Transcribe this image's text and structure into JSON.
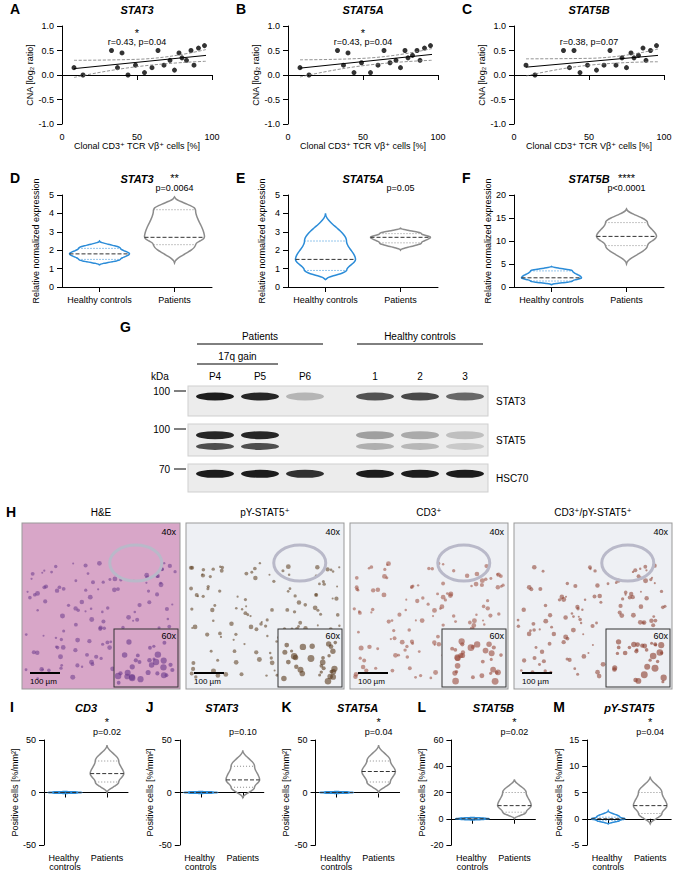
{
  "chart_data": [
    {
      "panel": "A",
      "type": "scatter",
      "title": "STAT3",
      "x_label": "Clonal CD3⁺ TCR Vβ⁺ cells [%]",
      "y_label": "CNA [log₂ ratio]",
      "significance": "*",
      "annotation": "r=0.43, p=0.04",
      "color": "#000000",
      "xlim": [
        0,
        100
      ],
      "xticks": [
        0,
        50,
        100
      ],
      "ylim": [
        -1,
        1
      ],
      "yticks": [
        {
          "value": -1,
          "label": "-1.0"
        },
        {
          "value": -0.5,
          "label": "-0.5"
        },
        {
          "value": 0,
          "label": "0.0"
        },
        {
          "value": 0.5,
          "label": "0.5"
        },
        {
          "value": 1,
          "label": "1.0"
        }
      ],
      "x": [
        8,
        14,
        33,
        37,
        40,
        44,
        49,
        55,
        60,
        64,
        68,
        72,
        75,
        78,
        80,
        83,
        86,
        88,
        91,
        95
      ],
      "values": [
        0.15,
        0.0,
        0.5,
        0.15,
        0.45,
        0.0,
        0.2,
        0.05,
        0.15,
        0.5,
        0.2,
        0.3,
        0.1,
        0.45,
        0.35,
        0.3,
        0.5,
        0.2,
        0.55,
        0.6
      ],
      "fit_line": {
        "x": [
          8,
          96
        ],
        "values": [
          0.13,
          0.4
        ]
      },
      "ci_upper": {
        "x": [
          8,
          50,
          96
        ],
        "values": [
          0.3,
          0.32,
          0.52
        ]
      },
      "ci_lower": {
        "x": [
          8,
          50,
          96
        ],
        "values": [
          -0.05,
          0.17,
          0.28
        ]
      }
    },
    {
      "panel": "B",
      "type": "scatter",
      "title": "STAT5A",
      "x_label": "Clonal CD3⁺ TCR Vβ⁺ cells [%]",
      "y_label": "CNA [log₂ ratio]",
      "significance": "*",
      "annotation": "r=0.43, p=0.04",
      "color": "#000000",
      "xlim": [
        0,
        100
      ],
      "xticks": [
        0,
        50,
        100
      ],
      "ylim": [
        -1,
        1
      ],
      "yticks": [
        {
          "value": -1,
          "label": "-1.0"
        },
        {
          "value": -0.5,
          "label": "-0.5"
        },
        {
          "value": 0,
          "label": "0.0"
        },
        {
          "value": 0.5,
          "label": "0.5"
        },
        {
          "value": 1,
          "label": "1.0"
        }
      ],
      "x": [
        8,
        14,
        33,
        37,
        40,
        44,
        49,
        55,
        60,
        64,
        68,
        72,
        75,
        78,
        80,
        83,
        86,
        88,
        91,
        95
      ],
      "values": [
        0.15,
        0.0,
        0.5,
        0.2,
        0.45,
        0.05,
        0.25,
        0.05,
        0.2,
        0.5,
        0.25,
        0.3,
        0.15,
        0.5,
        0.35,
        0.4,
        0.5,
        0.3,
        0.55,
        0.6
      ],
      "fit_line": {
        "x": [
          8,
          96
        ],
        "values": [
          0.14,
          0.42
        ]
      },
      "ci_upper": {
        "x": [
          8,
          50,
          96
        ],
        "values": [
          0.31,
          0.34,
          0.54
        ]
      },
      "ci_lower": {
        "x": [
          8,
          50,
          96
        ],
        "values": [
          -0.04,
          0.19,
          0.3
        ]
      }
    },
    {
      "panel": "C",
      "type": "scatter",
      "title": "STAT5B",
      "x_label": "Clonal CD3⁺ TCR Vβ⁺ cells [%]",
      "y_label": "CNA [log₂ ratio]",
      "annotation": "r=0.38, p=0.07",
      "color": "#000000",
      "xlim": [
        0,
        100
      ],
      "xticks": [
        0,
        50,
        100
      ],
      "ylim": [
        -1,
        1
      ],
      "yticks": [
        {
          "value": -1,
          "label": "-1.0"
        },
        {
          "value": -0.5,
          "label": "-0.5"
        },
        {
          "value": 0,
          "label": "0.0"
        },
        {
          "value": 0.5,
          "label": "0.5"
        },
        {
          "value": 1,
          "label": "1.0"
        }
      ],
      "x": [
        8,
        14,
        33,
        37,
        40,
        44,
        49,
        55,
        60,
        64,
        68,
        72,
        75,
        78,
        80,
        83,
        86,
        88,
        91,
        95
      ],
      "values": [
        0.2,
        0.0,
        0.5,
        0.15,
        0.5,
        0.05,
        0.2,
        0.1,
        0.2,
        0.5,
        0.2,
        0.35,
        0.15,
        0.45,
        0.35,
        0.4,
        0.55,
        0.3,
        0.5,
        0.6
      ],
      "fit_line": {
        "x": [
          8,
          96
        ],
        "values": [
          0.16,
          0.4
        ]
      },
      "ci_upper": {
        "x": [
          8,
          50,
          96
        ],
        "values": [
          0.33,
          0.34,
          0.53
        ]
      },
      "ci_lower": {
        "x": [
          8,
          50,
          96
        ],
        "values": [
          -0.02,
          0.2,
          0.27
        ]
      }
    },
    {
      "panel": "D",
      "type": "violin",
      "title": "STAT3",
      "y_label": "Relative normalized expression",
      "significance": "**",
      "annotation": "p=0.0064",
      "categories": [
        "Healthy controls",
        "Patients"
      ],
      "ylim": [
        0,
        5
      ],
      "yticks": [
        0,
        1,
        2,
        3,
        4,
        5
      ],
      "violins": [
        {
          "name": "Healthy controls",
          "color": "#2b8cd8",
          "min": 1.2,
          "q1": 1.5,
          "median": 1.8,
          "q3": 2.1,
          "max": 2.5
        },
        {
          "name": "Patients",
          "color": "#8c8c8c",
          "min": 1.3,
          "q1": 2.3,
          "median": 2.7,
          "q3": 4.2,
          "max": 4.9
        }
      ]
    },
    {
      "panel": "E",
      "type": "violin",
      "title": "STAT5A",
      "y_label": "Relative normalized expression",
      "annotation": "p=0.05",
      "categories": [
        "Healthy controls",
        "Patients"
      ],
      "ylim": [
        0,
        5
      ],
      "yticks": [
        0,
        1,
        2,
        3,
        4,
        5
      ],
      "violins": [
        {
          "name": "Healthy controls",
          "color": "#2b8cd8",
          "min": 0.4,
          "q1": 0.9,
          "median": 1.5,
          "q3": 2.5,
          "max": 4.0
        },
        {
          "name": "Patients",
          "color": "#8c8c8c",
          "min": 2.0,
          "q1": 2.4,
          "median": 2.7,
          "q3": 2.9,
          "max": 3.2
        }
      ]
    },
    {
      "panel": "F",
      "type": "violin",
      "title": "STAT5B",
      "y_label": "Relative normalized expression",
      "significance": "****",
      "annotation": "p<0.0001",
      "categories": [
        "Healthy controls",
        "Patients"
      ],
      "ylim": [
        0,
        20
      ],
      "yticks": [
        0,
        5,
        10,
        15,
        20
      ],
      "violins": [
        {
          "name": "Healthy controls",
          "color": "#2b8cd8",
          "min": 0.5,
          "q1": 1.3,
          "median": 2.0,
          "q3": 3.5,
          "max": 4.5
        },
        {
          "name": "Patients",
          "color": "#8c8c8c",
          "min": 5.0,
          "q1": 9.0,
          "median": 11.0,
          "q3": 14.0,
          "max": 17.0
        }
      ]
    },
    {
      "panel": "I",
      "type": "violin",
      "title": "CD3",
      "y_label": "Positive cells [%/mm²]",
      "significance": "*",
      "annotation": "p=0.02",
      "categories": [
        "Healthy controls",
        "Patients"
      ],
      "ylim": [
        -50,
        50
      ],
      "yticks": [
        -50,
        0,
        50
      ],
      "violins": [
        {
          "name": "Healthy controls",
          "color": "#2b8cd8",
          "min": -1,
          "q1": -0.5,
          "median": 0,
          "q3": 0.5,
          "max": 1
        },
        {
          "name": "Patients",
          "color": "#8c8c8c",
          "min": 0,
          "q1": 10,
          "median": 18,
          "q3": 30,
          "max": 45
        }
      ]
    },
    {
      "panel": "J",
      "type": "violin",
      "title": "STAT3",
      "y_label": "Positive cells [%/mm²]",
      "annotation": "p=0.10",
      "categories": [
        "Healthy controls",
        "Patients"
      ],
      "ylim": [
        -50,
        50
      ],
      "yticks": [
        -50,
        0,
        50
      ],
      "violins": [
        {
          "name": "Healthy controls",
          "color": "#2b8cd8",
          "min": -1,
          "q1": -0.5,
          "median": 0,
          "q3": 0.5,
          "max": 1
        },
        {
          "name": "Patients",
          "color": "#8c8c8c",
          "min": -5,
          "q1": 5,
          "median": 12,
          "q3": 25,
          "max": 40
        }
      ]
    },
    {
      "panel": "K",
      "type": "violin",
      "title": "STAT5A",
      "y_label": "Positive cells [%/mm²]",
      "significance": "*",
      "annotation": "p=0.04",
      "categories": [
        "Healthy controls",
        "Patients"
      ],
      "ylim": [
        -50,
        50
      ],
      "yticks": [
        -50,
        0,
        50
      ],
      "violins": [
        {
          "name": "Healthy controls",
          "color": "#2b8cd8",
          "min": -1,
          "q1": -0.5,
          "median": 0,
          "q3": 0.5,
          "max": 1
        },
        {
          "name": "Patients",
          "color": "#8c8c8c",
          "min": 0,
          "q1": 10,
          "median": 20,
          "q3": 30,
          "max": 45
        }
      ]
    },
    {
      "panel": "L",
      "type": "violin",
      "title": "STAT5B",
      "y_label": "Positive cells [%/mm²]",
      "significance": "*",
      "annotation": "p=0.02",
      "categories": [
        "Healthy controls",
        "Patients"
      ],
      "ylim": [
        -20,
        60
      ],
      "yticks": [
        -20,
        0,
        20,
        40,
        60
      ],
      "violins": [
        {
          "name": "Healthy controls",
          "color": "#2b8cd8",
          "min": -1,
          "q1": -0.5,
          "median": 0,
          "q3": 0.5,
          "max": 1
        },
        {
          "name": "Patients",
          "color": "#8c8c8c",
          "min": 0,
          "q1": 5,
          "median": 10,
          "q3": 20,
          "max": 30
        }
      ]
    },
    {
      "panel": "M",
      "type": "violin",
      "title": "pY-STAT5",
      "y_label": "Positive cells [%/mm²]",
      "significance": "*",
      "annotation": "p=0.04",
      "categories": [
        "Healthy controls",
        "Patients"
      ],
      "ylim": [
        -5,
        15
      ],
      "yticks": [
        -5,
        0,
        5,
        10,
        15
      ],
      "violins": [
        {
          "name": "Healthy controls",
          "color": "#2b8cd8",
          "min": -1,
          "q1": -0.3,
          "median": 0,
          "q3": 0.3,
          "max": 1.5
        },
        {
          "name": "Patients",
          "color": "#8c8c8c",
          "min": -1,
          "q1": 1,
          "median": 2.5,
          "q3": 5,
          "max": 8
        }
      ]
    }
  ],
  "blot": {
    "panel": "G",
    "unit": "kDa",
    "lanes": [
      "P4",
      "P5",
      "P6",
      "1",
      "2",
      "3"
    ],
    "header_groups": [
      {
        "label": "Patients",
        "lanes": [
          0,
          2
        ]
      },
      {
        "label": "17q gain",
        "lanes": [
          0,
          1
        ]
      },
      {
        "label": "Healthy controls",
        "lanes": [
          3,
          5
        ]
      }
    ],
    "rows": [
      {
        "protein": "STAT3",
        "marker": "100"
      },
      {
        "protein": "STAT5",
        "marker": "100"
      },
      {
        "protein": "HSC70",
        "marker": "70"
      }
    ]
  },
  "histology": {
    "panel": "H",
    "magnification": "40x",
    "inset_magnification": "60x",
    "scale_bar": "100 µm",
    "stains": [
      "H&E",
      "pY-STAT5⁺",
      "CD3⁺",
      "CD3⁺/pY-STAT5⁺"
    ]
  }
}
